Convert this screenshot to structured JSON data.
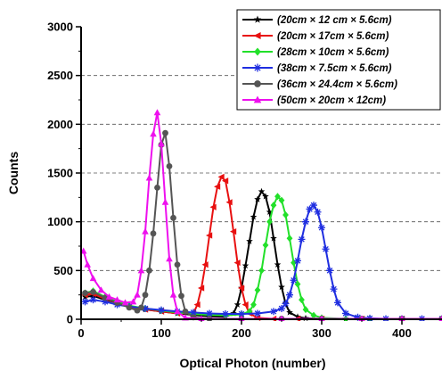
{
  "chart_data": {
    "type": "line",
    "xlabel": "Optical Photon (number)",
    "ylabel": "Counts",
    "xlim": [
      0,
      450
    ],
    "ylim": [
      0,
      3000
    ],
    "x_ticks": [
      "0",
      "100",
      "200",
      "300",
      "400"
    ],
    "y_ticks": [
      "0",
      "500",
      "1000",
      "1500",
      "2000",
      "2500",
      "3000"
    ],
    "grid": "horizontal-dashed",
    "legend_position": "top-right",
    "series": [
      {
        "name": "(20cm × 12 cm × 5.6cm)",
        "color": "#000000",
        "marker": "star",
        "x": [
          5,
          15,
          30,
          45,
          60,
          80,
          100,
          120,
          140,
          160,
          180,
          190,
          195,
          200,
          205,
          210,
          215,
          220,
          225,
          230,
          235,
          240,
          245,
          250,
          255,
          260,
          270,
          280,
          300,
          330,
          360,
          400,
          450
        ],
        "y": [
          230,
          240,
          200,
          170,
          130,
          100,
          80,
          60,
          45,
          30,
          25,
          60,
          150,
          320,
          550,
          800,
          1050,
          1230,
          1310,
          1260,
          1100,
          830,
          560,
          330,
          160,
          70,
          25,
          10,
          5,
          5,
          5,
          5,
          5
        ]
      },
      {
        "name": "(20cm × 17cm × 5.6cm)",
        "color": "#e81010",
        "marker": "triangle-left",
        "x": [
          5,
          15,
          30,
          45,
          60,
          80,
          100,
          120,
          140,
          145,
          150,
          155,
          160,
          165,
          170,
          175,
          180,
          185,
          190,
          195,
          200,
          205,
          210,
          220,
          240,
          270,
          300,
          350,
          400,
          450
        ],
        "y": [
          250,
          260,
          210,
          170,
          130,
          100,
          80,
          60,
          60,
          150,
          320,
          560,
          860,
          1150,
          1360,
          1460,
          1420,
          1200,
          900,
          580,
          320,
          150,
          60,
          15,
          5,
          5,
          5,
          5,
          5,
          5
        ]
      },
      {
        "name": "(28cm × 10cm × 5.6cm)",
        "color": "#22e02a",
        "marker": "diamond",
        "x": [
          5,
          15,
          30,
          45,
          60,
          80,
          100,
          120,
          140,
          160,
          180,
          200,
          210,
          215,
          220,
          225,
          230,
          235,
          240,
          245,
          250,
          255,
          260,
          265,
          270,
          275,
          280,
          290,
          300,
          330,
          360,
          400,
          450
        ],
        "y": [
          270,
          290,
          230,
          180,
          140,
          110,
          90,
          70,
          55,
          45,
          40,
          50,
          80,
          150,
          300,
          500,
          760,
          1000,
          1170,
          1260,
          1220,
          1070,
          830,
          580,
          360,
          200,
          100,
          40,
          15,
          5,
          5,
          5,
          5
        ]
      },
      {
        "name": "(38cm × 7.5cm × 5.6cm)",
        "color": "#1f2ee0",
        "marker": "asterisk",
        "x": [
          5,
          15,
          30,
          45,
          60,
          80,
          100,
          120,
          140,
          160,
          180,
          200,
          220,
          240,
          250,
          255,
          260,
          265,
          270,
          275,
          280,
          285,
          290,
          295,
          300,
          305,
          310,
          315,
          320,
          330,
          345,
          360,
          380,
          400,
          425,
          450
        ],
        "y": [
          180,
          200,
          180,
          150,
          130,
          110,
          95,
          80,
          70,
          60,
          55,
          55,
          60,
          80,
          110,
          160,
          250,
          400,
          600,
          820,
          1000,
          1130,
          1170,
          1100,
          940,
          720,
          500,
          310,
          170,
          60,
          20,
          10,
          5,
          5,
          5,
          5
        ]
      },
      {
        "name": "(36cm × 24.4cm × 5.6cm)",
        "color": "#555555",
        "marker": "circle",
        "x": [
          5,
          15,
          30,
          45,
          60,
          70,
          75,
          80,
          85,
          90,
          95,
          100,
          105,
          110,
          115,
          120,
          125,
          130,
          140,
          160,
          200,
          250,
          300,
          350,
          400,
          450
        ],
        "y": [
          270,
          280,
          220,
          170,
          120,
          90,
          120,
          250,
          500,
          880,
          1350,
          1790,
          1910,
          1570,
          1040,
          560,
          240,
          80,
          20,
          5,
          5,
          5,
          5,
          5,
          5,
          5
        ]
      },
      {
        "name": "(50cm × 20cm × 12cm)",
        "color": "#ee10ee",
        "marker": "triangle-up",
        "x": [
          3,
          8,
          15,
          25,
          35,
          45,
          55,
          65,
          70,
          75,
          80,
          85,
          90,
          95,
          100,
          105,
          110,
          115,
          120,
          130,
          150,
          200,
          250,
          300,
          350,
          400,
          450
        ],
        "y": [
          700,
          560,
          420,
          300,
          230,
          200,
          170,
          180,
          250,
          500,
          900,
          1450,
          1900,
          2120,
          1800,
          1200,
          620,
          250,
          80,
          15,
          5,
          5,
          5,
          5,
          5,
          5,
          5
        ]
      }
    ]
  }
}
